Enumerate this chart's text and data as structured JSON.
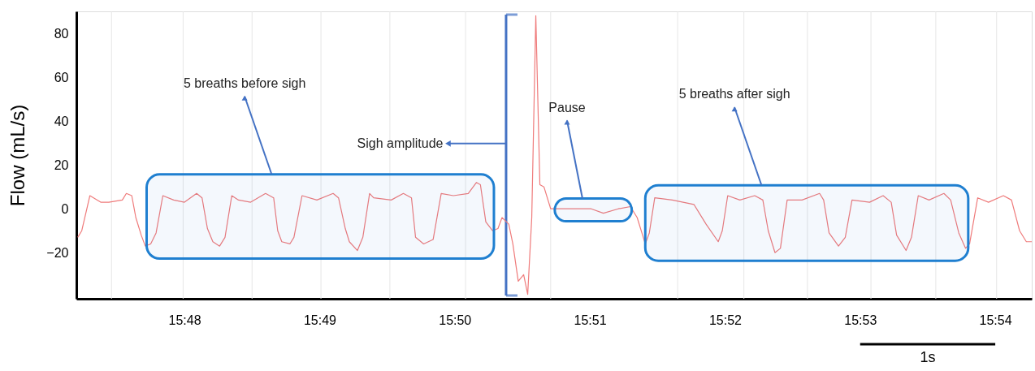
{
  "chart_data": {
    "type": "line",
    "ylabel": "Flow (mL/s)",
    "xlim": [
      947.2,
      954.27
    ],
    "ylim": [
      -41,
      90
    ],
    "xticks": [
      {
        "value": 948,
        "label": "15:48"
      },
      {
        "value": 949,
        "label": "15:49"
      },
      {
        "value": 950,
        "label": "15:50"
      },
      {
        "value": 951,
        "label": "15:51"
      },
      {
        "value": 952,
        "label": "15:52"
      },
      {
        "value": 953,
        "label": "15:53"
      },
      {
        "value": 954,
        "label": "15:54"
      }
    ],
    "yticks": [
      -20,
      0,
      20,
      40,
      60,
      80
    ],
    "grid": false,
    "marker": "none",
    "line_style": "solid",
    "series": [
      {
        "color": "#ef7b7b",
        "x": [
          947.21,
          947.24,
          947.3,
          947.38,
          947.44,
          947.54,
          947.57,
          947.61,
          947.64,
          947.68,
          947.71,
          947.75,
          947.79,
          947.84,
          947.92,
          948.0,
          948.09,
          948.13,
          948.17,
          948.21,
          948.26,
          948.3,
          948.35,
          948.4,
          948.49,
          948.6,
          948.66,
          948.69,
          948.72,
          948.78,
          948.81,
          948.87,
          948.98,
          949.1,
          949.14,
          949.19,
          949.22,
          949.28,
          949.32,
          949.37,
          949.4,
          949.53,
          949.62,
          949.68,
          949.71,
          949.77,
          949.84,
          949.9,
          949.99,
          950.1,
          950.16,
          950.19,
          950.23,
          950.28,
          950.32,
          950.35,
          950.4,
          950.43,
          950.47,
          950.51,
          950.54,
          950.57,
          950.6,
          950.63,
          950.66,
          950.71,
          950.77,
          950.89,
          951.01,
          951.1,
          951.21,
          951.3,
          951.35,
          951.41,
          951.44,
          951.48,
          951.61,
          951.69,
          951.77,
          951.86,
          951.95,
          951.98,
          952.02,
          952.11,
          952.22,
          952.28,
          952.32,
          952.37,
          952.41,
          952.46,
          952.57,
          952.7,
          952.73,
          952.77,
          952.84,
          952.89,
          952.94,
          953.07,
          953.17,
          953.23,
          953.27,
          953.34,
          953.38,
          953.43,
          953.51,
          953.62,
          953.67,
          953.73,
          953.78,
          953.81,
          953.87,
          953.95,
          954.06,
          954.12,
          954.18,
          954.23,
          954.27
        ],
        "values": [
          -13,
          -10,
          6,
          3,
          3,
          4,
          7,
          6,
          -4,
          -12,
          -17,
          -16,
          -11,
          6,
          4,
          3,
          7,
          5,
          -9,
          -15,
          -17,
          -13,
          6,
          4,
          3,
          7,
          5,
          -10,
          -15,
          -16,
          -13,
          6,
          4,
          7,
          5,
          -9,
          -15,
          -19,
          -13,
          7,
          5,
          4,
          7,
          5,
          -13,
          -16,
          -14,
          7,
          6,
          7,
          12,
          11,
          -6,
          -10,
          -9,
          -4,
          -7,
          -16,
          -33,
          -30,
          -39,
          -4,
          88,
          11,
          10,
          0,
          0,
          0,
          0,
          -2,
          0,
          1,
          -4,
          -16,
          -11,
          5,
          4,
          3,
          2,
          -7,
          -15,
          -10,
          6,
          4,
          6,
          4,
          -10,
          -20,
          -18,
          4,
          4,
          7,
          4,
          -11,
          -17,
          -13,
          4,
          3,
          6,
          3,
          -12,
          -19,
          -13,
          6,
          4,
          7,
          4,
          -11,
          -18,
          -16,
          5,
          3,
          6,
          4,
          -10,
          -15,
          -15
        ]
      }
    ],
    "ref_lines": [
      {
        "axis": "x",
        "value": 947.46,
        "label": null,
        "color": "#e6e6e6"
      },
      {
        "axis": "x",
        "value": 947.99,
        "label": null,
        "color": "#e6e6e6"
      },
      {
        "axis": "x",
        "value": 948.5,
        "label": null,
        "color": "#e6e6e6"
      },
      {
        "axis": "x",
        "value": 949.01,
        "label": null,
        "color": "#e6e6e6"
      },
      {
        "axis": "x",
        "value": 949.52,
        "label": null,
        "color": "#e6e6e6"
      },
      {
        "axis": "x",
        "value": 950.08,
        "label": null,
        "color": "#e6e6e6"
      },
      {
        "axis": "x",
        "value": 950.71,
        "label": null,
        "color": "#e6e6e6"
      },
      {
        "axis": "x",
        "value": 951.65,
        "label": null,
        "color": "#e6e6e6"
      },
      {
        "axis": "x",
        "value": 952.14,
        "label": null,
        "color": "#e6e6e6"
      },
      {
        "axis": "x",
        "value": 952.61,
        "label": null,
        "color": "#e6e6e6"
      },
      {
        "axis": "x",
        "value": 953.08,
        "label": null,
        "color": "#e6e6e6"
      },
      {
        "axis": "x",
        "value": 953.56,
        "label": null,
        "color": "#e6e6e6"
      },
      {
        "axis": "x",
        "value": 954.01,
        "label": null,
        "color": "#e6e6e6"
      },
      {
        "axis": "x",
        "value": 950.38,
        "label": "Sigh amplitude",
        "color": "#4472c4"
      }
    ],
    "bands": [
      {
        "axis": "x",
        "from": 947.72,
        "to": 950.29,
        "label": "5 breaths before sigh",
        "color": "#1f7fd0"
      },
      {
        "axis": "x",
        "from": 950.74,
        "to": 951.31,
        "label": "Pause",
        "color": "#1f7fd0"
      },
      {
        "axis": "x",
        "from": 951.41,
        "to": 953.8,
        "label": "5 breaths after sigh",
        "color": "#1f7fd0"
      }
    ],
    "annotations": [
      "1s"
    ]
  }
}
